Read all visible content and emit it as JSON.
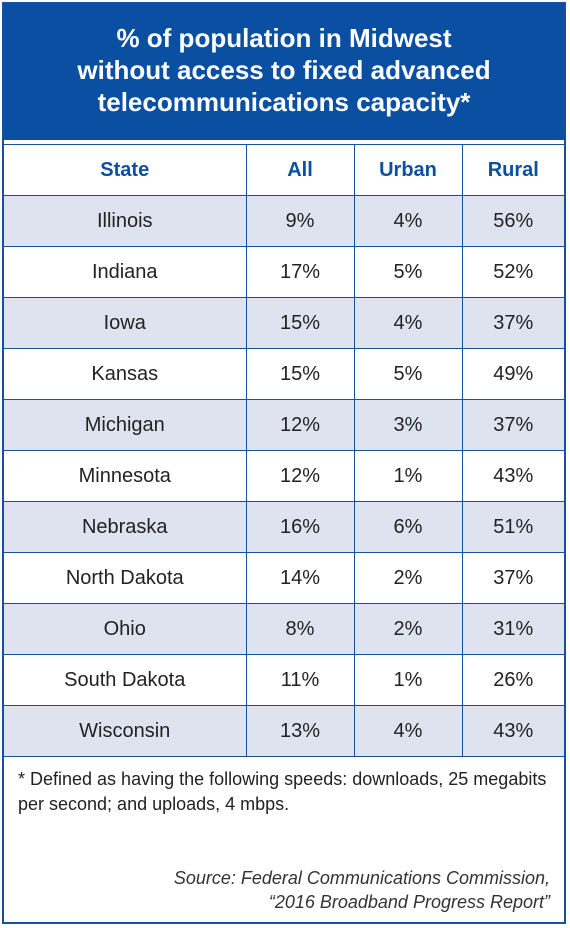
{
  "title": {
    "line1": "% of population in Midwest",
    "line2": "without access to fixed advanced",
    "line3": "telecommunications capacity*"
  },
  "chart_data": {
    "type": "table",
    "columns": [
      "State",
      "All",
      "Urban",
      "Rural"
    ],
    "rows": [
      [
        "Illinois",
        "9%",
        "4%",
        "56%"
      ],
      [
        "Indiana",
        "17%",
        "5%",
        "52%"
      ],
      [
        "Iowa",
        "15%",
        "4%",
        "37%"
      ],
      [
        "Kansas",
        "15%",
        "5%",
        "49%"
      ],
      [
        "Michigan",
        "12%",
        "3%",
        "37%"
      ],
      [
        "Minnesota",
        "12%",
        "1%",
        "43%"
      ],
      [
        "Nebraska",
        "16%",
        "6%",
        "51%"
      ],
      [
        "North Dakota",
        "14%",
        "2%",
        "37%"
      ],
      [
        "Ohio",
        "8%",
        "2%",
        "31%"
      ],
      [
        "South Dakota",
        "11%",
        "1%",
        "26%"
      ],
      [
        "Wisconsin",
        "13%",
        "4%",
        "43%"
      ]
    ]
  },
  "footnote": "* Defined as having the following speeds: downloads, 25 megabits per second; and uploads, 4 mbps.",
  "source": {
    "line1": "Source: Federal Communications Commission,",
    "line2": "“2016 Broadband Progress Report”"
  },
  "colors": {
    "header_blue": "#0b4fa3",
    "row_shade": "#dfe3f0"
  }
}
